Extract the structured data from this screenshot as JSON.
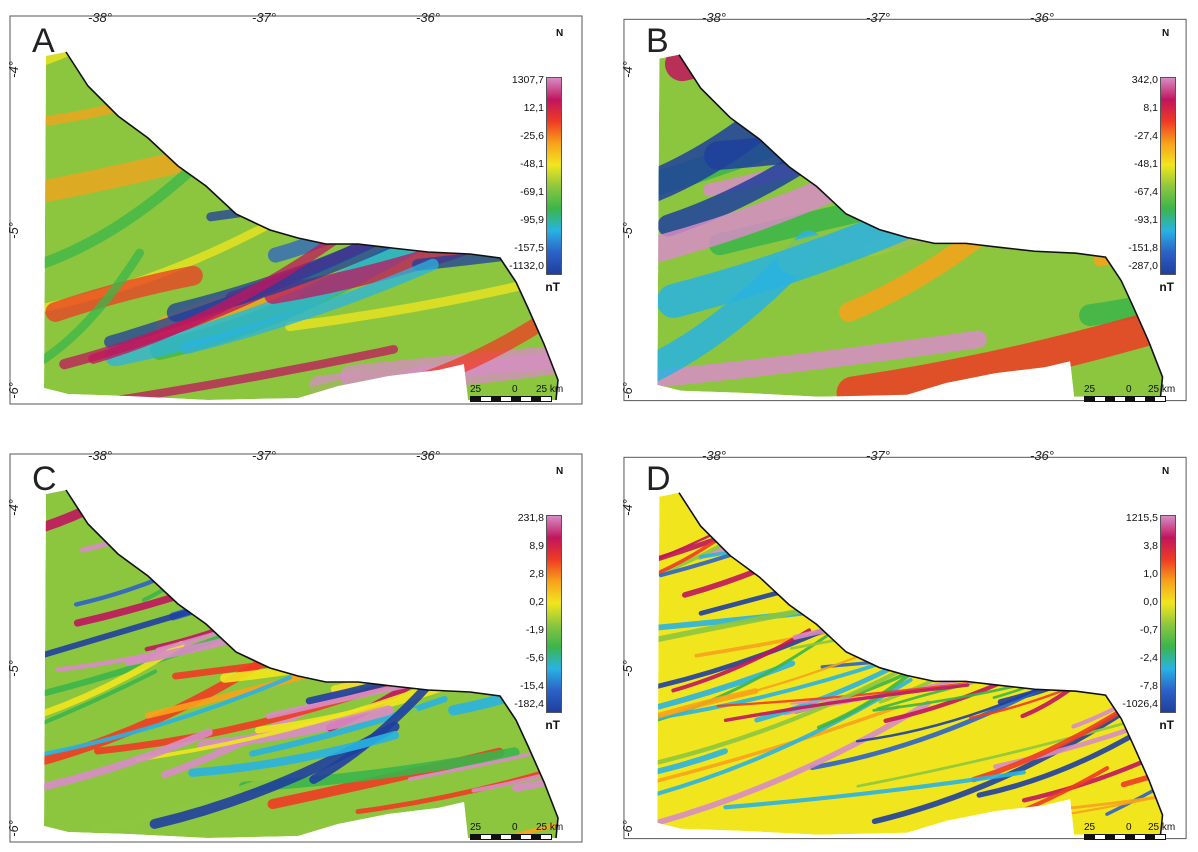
{
  "colors": {
    "scale": [
      "#1f3f9e",
      "#2c62c8",
      "#29b3e2",
      "#3bb54a",
      "#8cc63f",
      "#f1e61e",
      "#f7a21b",
      "#ef3b24",
      "#c0155d",
      "#d78cc5"
    ],
    "frame": "#555555"
  },
  "longitude_labels": [
    "-38°",
    "-37°",
    "-36°"
  ],
  "latitude_labels": [
    "-4°",
    "-5°",
    "-6°"
  ],
  "unit": "nT",
  "scale_bar": {
    "left": "25",
    "mid": "0",
    "right": "25 km"
  },
  "north_arrow": "N",
  "panels": [
    {
      "letter": "A",
      "legend": [
        "1307,7",
        "12,1",
        "-25,6",
        "-48,1",
        "-69,1",
        "-95,9",
        "-157,5",
        "-1132,0"
      ]
    },
    {
      "letter": "B",
      "legend": [
        "342,0",
        "8,1",
        "-27,4",
        "-48,1",
        "-67,4",
        "-93,1",
        "-151,8",
        "-287,0"
      ]
    },
    {
      "letter": "C",
      "legend": [
        "231,8",
        "8,9",
        "2,8",
        "0,2",
        "-1,9",
        "-5,6",
        "-15,4",
        "-182,4"
      ]
    },
    {
      "letter": "D",
      "legend": [
        "1215,5",
        "3,8",
        "1,0",
        "0,0",
        "-0,7",
        "-2,4",
        "-7,8",
        "-1026,4"
      ]
    }
  ]
}
